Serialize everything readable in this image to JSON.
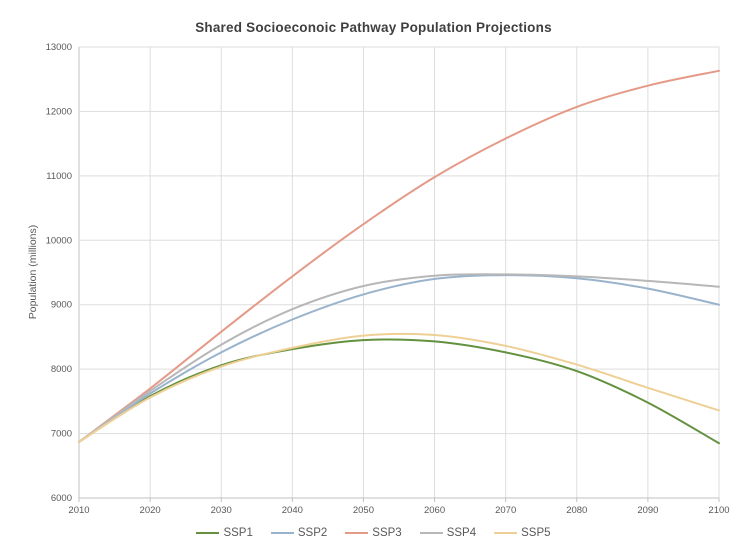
{
  "chart": {
    "title": "Shared Socioeconoic Pathway Population Projections",
    "y_axis_title": "Population (millions)"
  },
  "chart_data": {
    "type": "line",
    "title": "Shared Socioeconoic Pathway Population Projections",
    "xlabel": "",
    "ylabel": "Population (millions)",
    "x": [
      2010,
      2020,
      2030,
      2040,
      2050,
      2060,
      2070,
      2080,
      2090,
      2100
    ],
    "series": [
      {
        "name": "SSP1",
        "color": "#64913f",
        "values": [
          6870,
          7580,
          8060,
          8310,
          8450,
          8430,
          8260,
          7970,
          7480,
          6850
        ]
      },
      {
        "name": "SSP2",
        "color": "#9ab3cd",
        "values": [
          6870,
          7620,
          8260,
          8770,
          9160,
          9400,
          9460,
          9410,
          9250,
          9000
        ]
      },
      {
        "name": "SSP3",
        "color": "#e59a88",
        "values": [
          6870,
          7700,
          8580,
          9440,
          10250,
          10980,
          11580,
          12070,
          12400,
          12630
        ]
      },
      {
        "name": "SSP4",
        "color": "#b7b7b7",
        "values": [
          6870,
          7660,
          8380,
          8930,
          9290,
          9450,
          9470,
          9440,
          9370,
          9280
        ]
      },
      {
        "name": "SSP5",
        "color": "#eed096",
        "values": [
          6870,
          7560,
          8040,
          8330,
          8520,
          8530,
          8360,
          8070,
          7710,
          7360
        ]
      }
    ],
    "xlim": [
      2010,
      2100
    ],
    "ylim": [
      6000,
      13000
    ],
    "x_ticks": [
      2010,
      2020,
      2030,
      2040,
      2050,
      2060,
      2070,
      2080,
      2090,
      2100
    ],
    "y_ticks": [
      6000,
      7000,
      8000,
      9000,
      10000,
      11000,
      12000,
      13000
    ],
    "grid": true,
    "legend_position": "bottom",
    "grid_color": "#dddddd",
    "axis_color": "#c0c0c0",
    "tick_label_color": "#595959",
    "title_color": "#404040"
  }
}
